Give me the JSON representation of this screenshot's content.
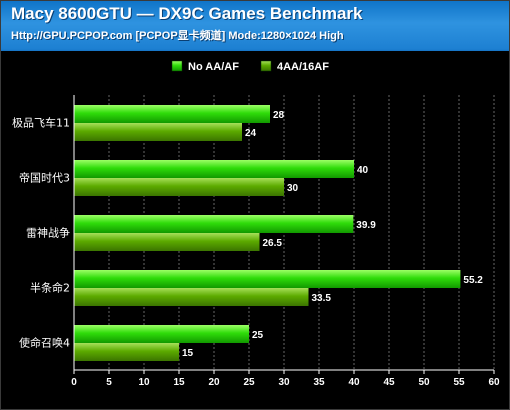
{
  "header": {
    "title": "Macy 8600GTU  — DX9C Games Benchmark",
    "subtitle": "Http://GPU.PCPOP.com [PCPOP显卡频道] Mode:1280×1024 High"
  },
  "chart_data": {
    "type": "bar",
    "orientation": "horizontal",
    "title": "Macy 8600GTU  — DX9C Games Benchmark",
    "subtitle": "Http://GPU.PCPOP.com [PCPOP显卡频道] Mode:1280×1024 High",
    "categories": [
      "极品飞车11",
      "帝国时代3",
      "雷神战争",
      "半条命2",
      "使命召唤4"
    ],
    "series": [
      {
        "name": "No AA/AF",
        "values": [
          28,
          40,
          39.9,
          55.2,
          25
        ],
        "color": "#22cc00"
      },
      {
        "name": "4AA/16AF",
        "values": [
          24,
          30,
          26.5,
          33.5,
          15
        ],
        "color": "#5aa800"
      }
    ],
    "data_labels": [
      [
        "28",
        "40",
        "39.9",
        "55.2",
        "25"
      ],
      [
        "24",
        "30",
        "26.5",
        "33.5",
        "15"
      ]
    ],
    "xlim": [
      0,
      60
    ],
    "xticks": [
      0,
      5,
      10,
      15,
      20,
      25,
      30,
      35,
      40,
      45,
      50,
      55,
      60
    ],
    "xlabel": "",
    "ylabel": "",
    "legend_position": "top-center",
    "grid": true,
    "colors": {
      "background": "#000000",
      "header": "#1d80d2",
      "grid": "#666666",
      "text": "#ffffff"
    }
  }
}
